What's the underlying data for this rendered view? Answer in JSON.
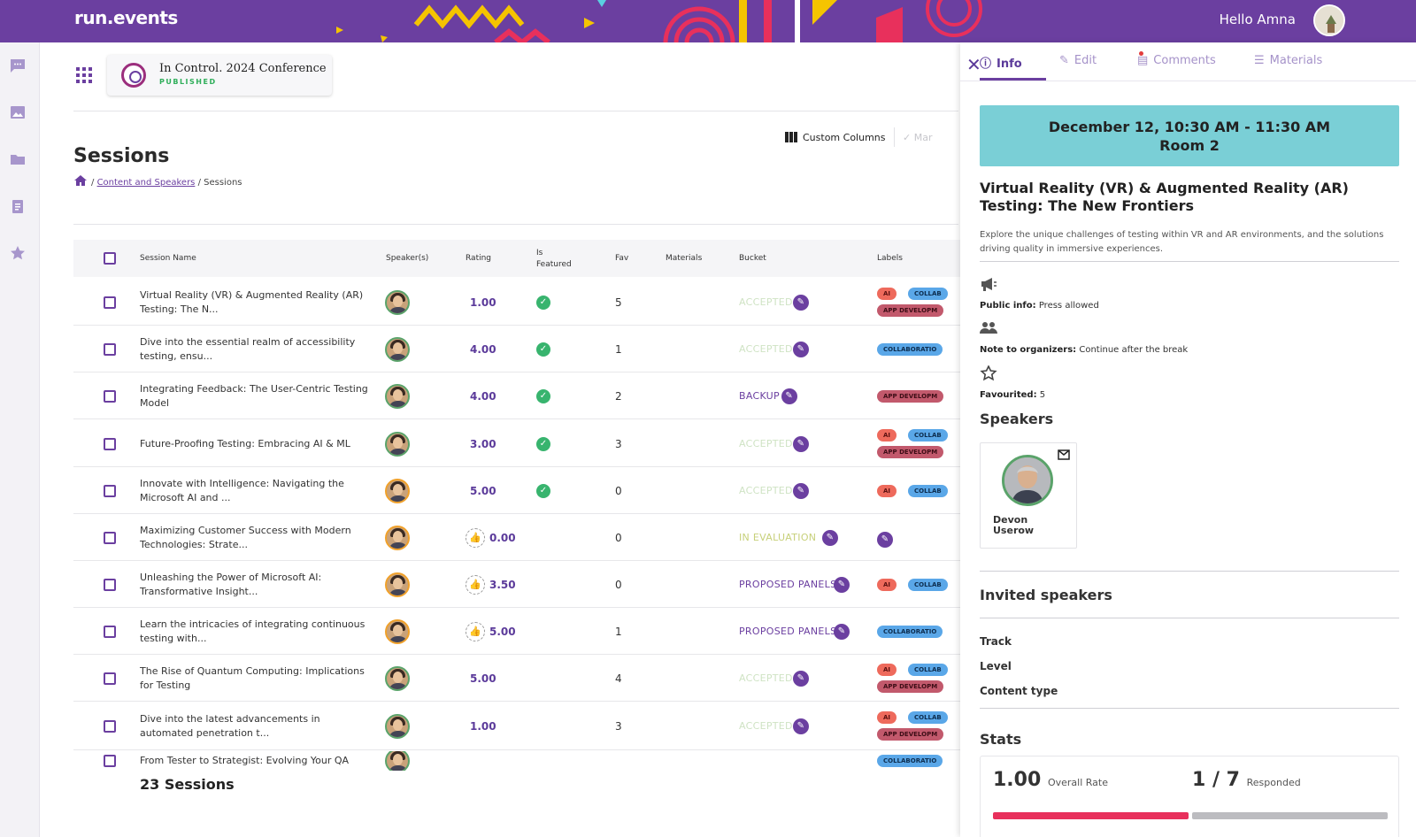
{
  "app": {
    "logo": "run.events",
    "greeting": "Hello Amna"
  },
  "event": {
    "title": "In Control. 2024 Conference",
    "status": "PUBLISHED"
  },
  "page": {
    "title": "Sessions",
    "breadcrumb_link": "Content and Speakers",
    "breadcrumb_sep": "/",
    "breadcrumb_current": "Sessions"
  },
  "toolbar": {
    "custom_columns": "Custom Columns",
    "mark": "Mar"
  },
  "table": {
    "headers": {
      "name": "Session Name",
      "speakers": "Speaker(s)",
      "rating": "Rating",
      "featured_1": "Is",
      "featured_2": "Featured",
      "fav": "Fav",
      "materials": "Materials",
      "bucket": "Bucket",
      "labels": "Labels"
    },
    "rows": [
      {
        "name": "Virtual Reality (VR) & Augmented Reality (AR) Testing: The N...",
        "rating": "1.00",
        "featured": true,
        "fav": "5",
        "bucket": "ACCEPTED",
        "labels": [
          "AI",
          "COLLAB",
          "APP DEVELOPM"
        ]
      },
      {
        "name": "Dive into the essential realm of accessibility testing, ensu...",
        "rating": "4.00",
        "featured": true,
        "fav": "1",
        "bucket": "ACCEPTED",
        "labels": [
          "COLLABORATIO"
        ]
      },
      {
        "name": "Integrating Feedback: The User-Centric Testing Model",
        "rating": "4.00",
        "featured": true,
        "fav": "2",
        "bucket": "BACKUP",
        "labels": [
          "APP DEVELOPM"
        ]
      },
      {
        "name": "Future-Proofing Testing: Embracing AI & ML",
        "rating": "3.00",
        "featured": true,
        "fav": "3",
        "bucket": "ACCEPTED",
        "labels": [
          "AI",
          "COLLAB",
          "APP DEVELOPM"
        ]
      },
      {
        "name": "Innovate with Intelligence: Navigating the Microsoft AI and ...",
        "rating": "5.00",
        "featured": true,
        "fav": "0",
        "bucket": "ACCEPTED",
        "labels": [
          "AI",
          "COLLAB"
        ]
      },
      {
        "name": "Maximizing Customer Success with Modern Technologies: Strate...",
        "rating": "0.00",
        "featured": false,
        "fav": "0",
        "bucket": "IN EVALUATION",
        "labels": []
      },
      {
        "name": "Unleashing the Power of Microsoft AI: Transformative Insight...",
        "rating": "3.50",
        "featured": false,
        "fav": "0",
        "bucket": "PROPOSED PANELS",
        "labels": [
          "AI",
          "COLLAB"
        ]
      },
      {
        "name": "Learn the intricacies of integrating continuous testing with...",
        "rating": "5.00",
        "featured": false,
        "fav": "1",
        "bucket": "PROPOSED PANELS",
        "labels": [
          "COLLABORATIO"
        ]
      },
      {
        "name": "The Rise of Quantum Computing: Implications for Testing",
        "rating": "5.00",
        "featured": false,
        "fav": "4",
        "bucket": "ACCEPTED",
        "labels": [
          "AI",
          "COLLAB",
          "APP DEVELOPM"
        ]
      },
      {
        "name": "Dive into the latest advancements in automated penetration t...",
        "rating": "1.00",
        "featured": false,
        "fav": "3",
        "bucket": "ACCEPTED",
        "labels": [
          "AI",
          "COLLAB",
          "APP DEVELOPM"
        ]
      },
      {
        "name": "From Tester to Strategist: Evolving Your QA",
        "rating": "",
        "featured": false,
        "fav": "",
        "bucket": "",
        "labels": [
          "COLLABORATIO"
        ]
      }
    ],
    "count": "23 Sessions"
  },
  "panel": {
    "tabs": {
      "info": "Info",
      "edit": "Edit",
      "comments": "Comments",
      "materials": "Materials"
    },
    "time": "December 12, 10:30 AM - 11:30 AM",
    "room": "Room 2",
    "title": "Virtual Reality (VR) & Augmented Reality (AR) Testing: The New Frontiers",
    "description": "Explore the unique challenges of testing within VR and AR environments, and the solutions driving quality in immersive experiences.",
    "public_info_label": "Public info:",
    "public_info_value": "Press allowed",
    "note_label": "Note to organizers:",
    "note_value": "Continue after the break",
    "favourited_label": "Favourited:",
    "favourited_value": "5",
    "speakers_heading": "Speakers",
    "speaker_name": "Devon Userow",
    "invited_heading": "Invited speakers",
    "track_label": "Track",
    "level_label": "Level",
    "content_type_label": "Content type",
    "stats_heading": "Stats",
    "overall_rate": "1.00",
    "overall_rate_label": "Overall Rate",
    "responded": "1 / 7",
    "responded_label": "Responded"
  }
}
